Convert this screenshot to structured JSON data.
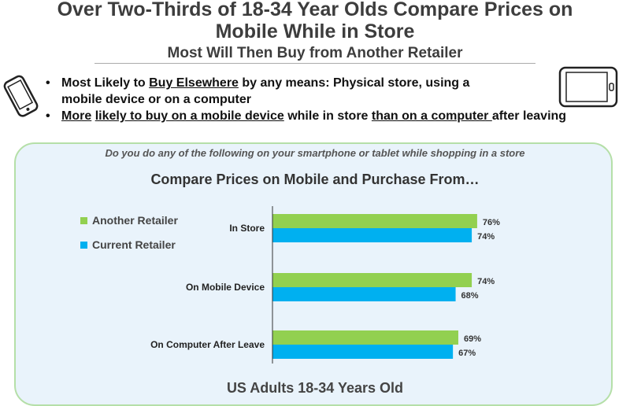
{
  "header": {
    "title_line1": "Over Two-Thirds of 18-34 Year Olds Compare Prices on",
    "title_line2": "Mobile While in Store",
    "subtitle": "Most Will Then Buy from Another Retailer"
  },
  "bullets": {
    "b1": {
      "pre": "Most Likely to ",
      "u": "Buy Elsewhere",
      "post": " by any means:  Physical store, using a",
      "line2": "mobile device or on a computer"
    },
    "b2": {
      "u1": "More",
      "mid1": " ",
      "u2": "likely to buy on a mobile device",
      "mid2": " while in store ",
      "u3": "than on a computer ",
      "post": "after leaving"
    }
  },
  "icons": {
    "left": "smartphone-icon",
    "right": "tablet-icon"
  },
  "panel": {
    "question": "Do you do any of the following on your smartphone or tablet while shopping in a store",
    "footer": "US Adults 18-34 Years Old"
  },
  "chart_data": {
    "type": "bar",
    "orientation": "horizontal",
    "title": "Compare Prices on Mobile and Purchase From…",
    "categories": [
      "In Store",
      "On Mobile Device",
      "On Computer After Leave"
    ],
    "series": [
      {
        "name": "Another Retailer",
        "color": "#92d050",
        "values": [
          76,
          74,
          69
        ],
        "labels": [
          "76%",
          "74%",
          "69%"
        ]
      },
      {
        "name": "Current Retailer",
        "color": "#00b0f0",
        "values": [
          74,
          68,
          67
        ],
        "labels": [
          "74%",
          "68%",
          "67%"
        ]
      }
    ],
    "xlim": [
      0,
      100
    ],
    "grid": false,
    "legend": "left"
  }
}
